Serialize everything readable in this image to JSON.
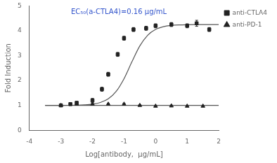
{
  "chart_data": {
    "type": "scatter",
    "xlabel": "Log[antibody,  μg/mL]",
    "ylabel": "Fold Induction",
    "xlim": [
      -4,
      2
    ],
    "ylim": [
      0,
      5
    ],
    "xticks": [
      -4,
      -3,
      -2,
      -1,
      0,
      1,
      2
    ],
    "yticks": [
      0,
      1,
      2,
      3,
      4,
      5
    ],
    "grid": false,
    "legend": "right",
    "annotations": [
      {
        "text": "EC₅₀(a-CTLA4)=0.16 μg/mL",
        "color": "#3355cc"
      }
    ],
    "series": [
      {
        "type": "line",
        "color": "#555555",
        "line_style": "solid",
        "x": [
          -3.5,
          2.0
        ],
        "values": [
          1.0,
          1.0
        ]
      },
      {
        "type": "line",
        "color": "#555555",
        "line_style": "solid",
        "x": [
          -3.5,
          -3.25,
          -3.0,
          -2.75,
          -2.5,
          -2.25,
          -2.0,
          -1.75,
          -1.5,
          -1.25,
          -1.0,
          -0.75,
          -0.5,
          -0.25,
          0.0,
          0.25,
          0.5,
          0.75,
          1.0,
          1.25,
          1.5,
          1.75,
          2.0
        ],
        "values": [
          1.0003,
          1.0007,
          1.0016,
          1.0038,
          1.009,
          1.0213,
          1.05,
          1.1162,
          1.2626,
          1.5606,
          2.0751,
          2.7538,
          3.3902,
          3.8219,
          4.0546,
          4.1646,
          4.2134,
          4.2345,
          4.2434,
          4.2472,
          4.2488,
          4.2495,
          4.2498
        ]
      },
      {
        "name": "anti-CTLA4",
        "type": "scatter",
        "marker": "square",
        "color": "#222222",
        "x": [
          -3.0,
          -2.7,
          -2.5,
          -2.0,
          -1.7,
          -1.5,
          -1.2,
          -1.0,
          -0.7,
          -0.3,
          0.0,
          0.5,
          1.0,
          1.3,
          1.7
        ],
        "values": [
          1.0,
          1.05,
          1.1,
          1.2,
          1.65,
          2.25,
          3.05,
          3.7,
          4.05,
          4.1,
          4.2,
          4.25,
          4.2,
          4.3,
          4.05
        ],
        "errors": [
          0.05,
          0.05,
          0.06,
          0.08,
          0.08,
          0.08,
          0.08,
          0.08,
          0.08,
          0.08,
          0.08,
          0.08,
          0.08,
          0.12,
          0.08
        ]
      },
      {
        "name": "anti-PD-1",
        "type": "scatter",
        "marker": "triangle",
        "color": "#222222",
        "x": [
          -3.0,
          -2.5,
          -2.0,
          -1.5,
          -1.0,
          -0.5,
          0.0,
          0.5,
          1.0,
          1.5
        ],
        "values": [
          1.0,
          1.05,
          1.05,
          1.05,
          1.05,
          1.0,
          0.97,
          0.98,
          0.97,
          0.97
        ],
        "errors": [
          0.03,
          0.03,
          0.03,
          0.03,
          0.03,
          0.03,
          0.03,
          0.03,
          0.03,
          0.03
        ]
      }
    ]
  }
}
